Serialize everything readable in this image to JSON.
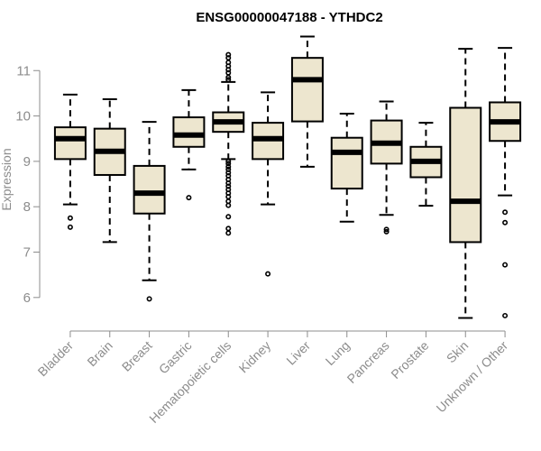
{
  "chart_data": {
    "type": "box",
    "title": "ENSG00000047188 - YTHDC2",
    "ylabel": "Expression",
    "xlabel": "",
    "ylim": [
      5.4,
      11.8
    ],
    "yticks": [
      6,
      7,
      8,
      9,
      10,
      11
    ],
    "box_fill": "#ede6cf",
    "line_color": "#000000",
    "axis_color": "#8c8c8c",
    "categories": [
      "Bladder",
      "Brain",
      "Breast",
      "Gastric",
      "Hematopoietic cells",
      "Kidney",
      "Liver",
      "Lung",
      "Pancreas",
      "Prostate",
      "Skin",
      "Unknown / Other"
    ],
    "boxes": [
      {
        "whisker_low": 8.05,
        "q1": 9.05,
        "median": 9.5,
        "q3": 9.75,
        "whisker_high": 10.47,
        "outliers": [
          7.75,
          7.55
        ]
      },
      {
        "whisker_low": 7.22,
        "q1": 8.7,
        "median": 9.22,
        "q3": 9.72,
        "whisker_high": 10.37,
        "outliers": []
      },
      {
        "whisker_low": 6.38,
        "q1": 7.85,
        "median": 8.3,
        "q3": 8.9,
        "whisker_high": 9.87,
        "outliers": [
          5.97
        ]
      },
      {
        "whisker_low": 8.82,
        "q1": 9.32,
        "median": 9.58,
        "q3": 9.97,
        "whisker_high": 10.57,
        "outliers": [
          8.2
        ]
      },
      {
        "whisker_low": 9.05,
        "q1": 9.65,
        "median": 9.87,
        "q3": 10.08,
        "whisker_high": 10.75,
        "outliers": [
          11.35,
          11.28,
          11.18,
          11.1,
          11.02,
          10.95,
          10.85,
          10.8,
          9.0,
          8.95,
          8.88,
          8.82,
          8.75,
          8.68,
          8.6,
          8.52,
          8.45,
          8.38,
          8.3,
          8.22,
          8.12,
          8.03,
          7.78,
          7.52,
          7.42
        ]
      },
      {
        "whisker_low": 8.05,
        "q1": 9.05,
        "median": 9.5,
        "q3": 9.85,
        "whisker_high": 10.52,
        "outliers": [
          6.52
        ]
      },
      {
        "whisker_low": 8.88,
        "q1": 9.88,
        "median": 10.8,
        "q3": 11.28,
        "whisker_high": 11.75,
        "outliers": []
      },
      {
        "whisker_low": 7.67,
        "q1": 8.4,
        "median": 9.2,
        "q3": 9.52,
        "whisker_high": 10.05,
        "outliers": []
      },
      {
        "whisker_low": 7.82,
        "q1": 8.95,
        "median": 9.4,
        "q3": 9.9,
        "whisker_high": 10.32,
        "outliers": [
          7.5,
          7.45
        ]
      },
      {
        "whisker_low": 8.02,
        "q1": 8.65,
        "median": 9.0,
        "q3": 9.32,
        "whisker_high": 9.85,
        "outliers": []
      },
      {
        "whisker_low": 5.55,
        "q1": 7.22,
        "median": 8.12,
        "q3": 10.18,
        "whisker_high": 11.48,
        "outliers": []
      },
      {
        "whisker_low": 8.25,
        "q1": 9.45,
        "median": 9.87,
        "q3": 10.3,
        "whisker_high": 11.5,
        "outliers": [
          7.88,
          7.65,
          6.72,
          5.6
        ]
      }
    ]
  }
}
